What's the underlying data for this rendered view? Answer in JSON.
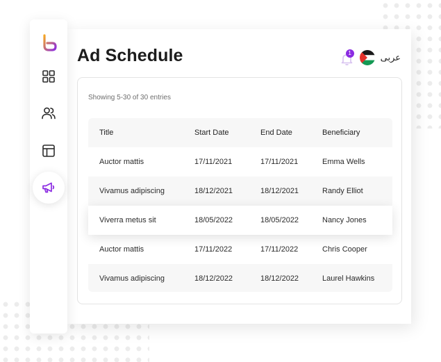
{
  "page": {
    "title": "Ad Schedule",
    "language": "عربى",
    "notification_count": "1"
  },
  "colors": {
    "brand_gradient_start": "#f5a623",
    "brand_gradient_end": "#8b2be2",
    "active_nav": "#8b2be2",
    "badge": "#8b2be2"
  },
  "sidebar": {
    "items": [
      {
        "icon": "logo-icon"
      },
      {
        "icon": "dashboard-grid-icon"
      },
      {
        "icon": "users-icon"
      },
      {
        "icon": "layout-icon"
      },
      {
        "icon": "megaphone-icon",
        "active": true
      }
    ]
  },
  "table": {
    "showing_text": "Showing 5-30 of 30 entries",
    "columns": [
      "Title",
      "Start Date",
      "End Date",
      "Beneficiary"
    ],
    "rows": [
      [
        "Auctor mattis",
        "17/11/2021",
        "17/11/2021",
        "Emma Wells"
      ],
      [
        "Vivamus adipiscing",
        "18/12/2021",
        "18/12/2021",
        "Randy Elliot"
      ],
      [
        "Viverra metus sit",
        "18/05/2022",
        "18/05/2022",
        "Nancy Jones"
      ],
      [
        "Auctor mattis",
        "17/11/2022",
        "17/11/2022",
        "Chris Cooper"
      ],
      [
        "Vivamus adipiscing",
        "18/12/2022",
        "18/12/2022",
        "Laurel Hawkins"
      ]
    ]
  }
}
